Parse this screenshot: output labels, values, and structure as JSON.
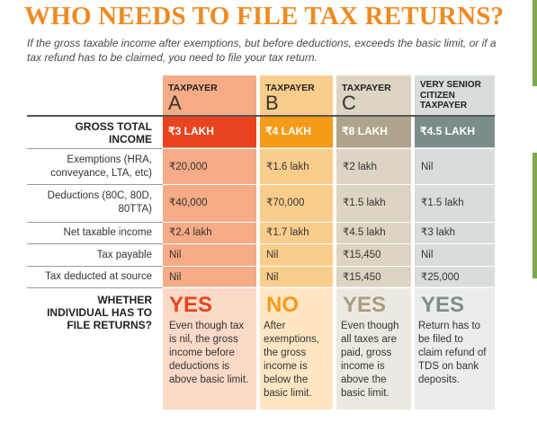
{
  "title": "WHO NEEDS TO FILE TAX RETURNS?",
  "subtitle": "If the gross taxable income after exemptions, but before deductions, exceeds the basic limit, or if a tax refund has to be claimed, you need to file your tax return.",
  "colors": {
    "taxpayer_a": "#e9441f",
    "taxpayer_b": "#f59b18",
    "taxpayer_c": "#b0a48c",
    "taxpayer_d": "#7b8d8a"
  },
  "columns": [
    {
      "small": "TAXPAYER",
      "letter": "A"
    },
    {
      "small": "TAXPAYER",
      "letter": "B"
    },
    {
      "small": "TAXPAYER",
      "letter": "C"
    },
    {
      "small": "VERY SENIOR\nCITIZEN\nTAXPAYER"
    }
  ],
  "rows": {
    "gross": {
      "label": "GROSS TOTAL\nINCOME",
      "values": [
        "₹3 LAKH",
        "₹4 LAKH",
        "₹8 LAKH",
        "₹4.5 LAKH"
      ]
    },
    "exemptions": {
      "label": "Exemptions (HRA,\nconveyance, LTA, etc)",
      "values": [
        "₹20,000",
        "₹1.6 lakh",
        "₹2 lakh",
        "Nil"
      ]
    },
    "deductions": {
      "label": "Deductions (80C, 80D,\n80TTA)",
      "values": [
        "₹40,000",
        "₹70,000",
        "₹1.5 lakh",
        "₹1.5 lakh"
      ]
    },
    "net_taxable": {
      "label": "Net taxable income",
      "values": [
        "₹2.4 lakh",
        "₹1.7 lakh",
        "₹4.5 lakh",
        "₹3 lakh"
      ]
    },
    "tax_payable": {
      "label": "Tax payable",
      "values": [
        "Nil",
        "Nil",
        "₹15,450",
        "Nil"
      ]
    },
    "tds": {
      "label": "Tax deducted at source",
      "values": [
        "Nil",
        "Nil",
        "₹15,450",
        "₹25,000"
      ]
    },
    "whether": {
      "label": "WHETHER\nINDIVIDUAL HAS TO\nFILE RETURNS?"
    }
  },
  "verdicts": [
    {
      "answer": "YES",
      "note": "Even though tax\nis nil, the gross\nincome before\ndeductions is\nabove basic limit.",
      "color": "#e9441f"
    },
    {
      "answer": "NO",
      "note": "After\nexemptions,\nthe gross\nincome is\nbelow the\nbasic limit.",
      "color": "#f59b18"
    },
    {
      "answer": "YES",
      "note": "Even though\nall taxes are\npaid, gross\nincome is\nabove the\nbasic limit.",
      "color": "#a99c83"
    },
    {
      "answer": "YES",
      "note": "Return has to\nbe filed to\nclaim refund of\nTDS on bank\ndeposits.",
      "color": "#7b8d8a"
    }
  ]
}
